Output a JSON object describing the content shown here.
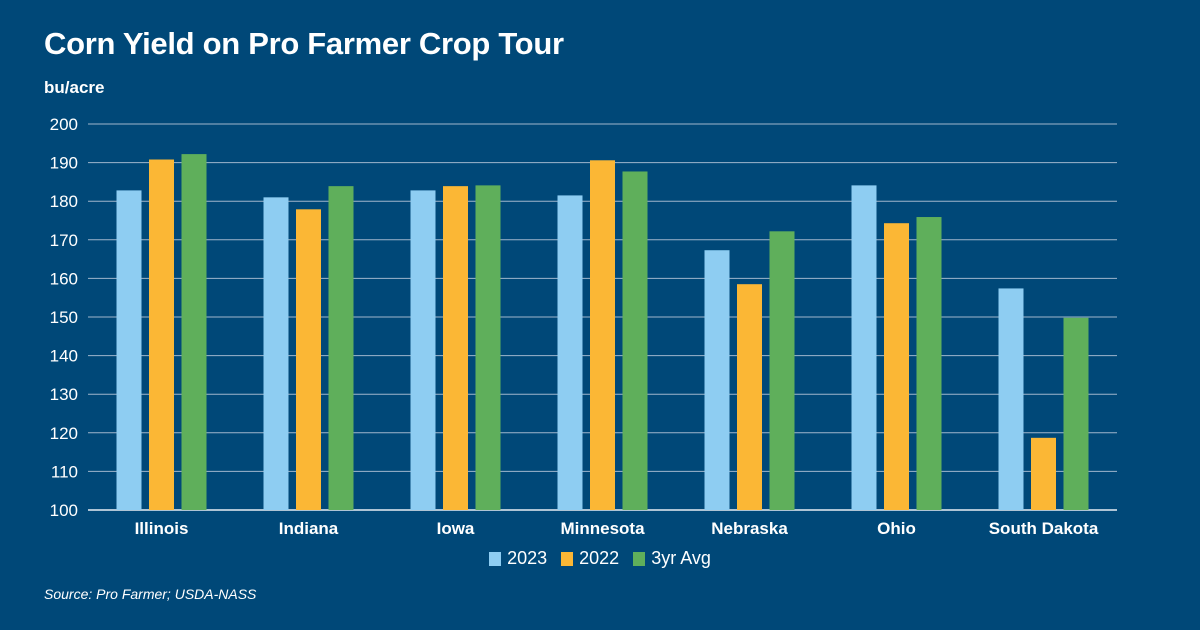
{
  "header": {
    "title": "Corn Yield on Pro Farmer Crop Tour",
    "unit": "bu/acre"
  },
  "footer": {
    "source": "Source: Pro Farmer; USDA-NASS"
  },
  "chart_data": {
    "type": "bar",
    "title": "Corn Yield on Pro Farmer Crop Tour",
    "ylabel": "bu/acre",
    "xlabel": "",
    "ylim": [
      100,
      200
    ],
    "yticks": [
      100,
      110,
      120,
      130,
      140,
      150,
      160,
      170,
      180,
      190,
      200
    ],
    "grid": true,
    "legend_position": "bottom",
    "categories": [
      "Illinois",
      "Indiana",
      "Iowa",
      "Minnesota",
      "Nebraska",
      "Ohio",
      "South Dakota"
    ],
    "series": [
      {
        "name": "2023",
        "color": "#8ecdf2",
        "values": [
          182.8,
          181.0,
          182.8,
          181.5,
          167.3,
          184.1,
          157.4
        ]
      },
      {
        "name": "2022",
        "color": "#fbb735",
        "values": [
          190.8,
          177.9,
          183.9,
          190.6,
          158.5,
          174.3,
          118.7
        ]
      },
      {
        "name": "3yr Avg",
        "color": "#5faf5b",
        "values": [
          192.2,
          183.9,
          184.1,
          187.7,
          172.2,
          175.9,
          149.8
        ]
      }
    ]
  }
}
